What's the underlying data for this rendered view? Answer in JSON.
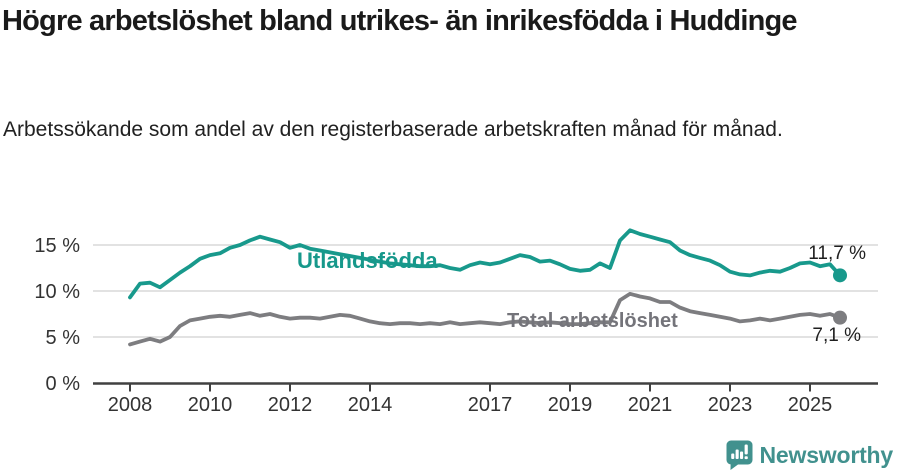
{
  "chart_data": {
    "type": "line",
    "title": "Högre arbetslöshet bland utrikes- än inrikesfödda i Huddinge",
    "subtitle": "Arbetssökande som andel av den registerbaserade arbetskraften månad för månad.",
    "xlabel": "",
    "ylabel": "",
    "unit": "%",
    "xlim": [
      2007.1,
      2026.7
    ],
    "ylim": [
      0,
      17.5
    ],
    "grid": "horizontal",
    "legend": "inline-labels",
    "yticks": [
      {
        "value": 0,
        "label": "0 %"
      },
      {
        "value": 5,
        "label": "5 %"
      },
      {
        "value": 10,
        "label": "10 %"
      },
      {
        "value": 15,
        "label": "15 %"
      }
    ],
    "xticks": [
      {
        "value": 2008,
        "label": "2008"
      },
      {
        "value": 2010,
        "label": "2010"
      },
      {
        "value": 2012,
        "label": "2012"
      },
      {
        "value": 2014,
        "label": "2014"
      },
      {
        "value": 2017,
        "label": "2017"
      },
      {
        "value": 2019,
        "label": "2019"
      },
      {
        "value": 2021,
        "label": "2021"
      },
      {
        "value": 2023,
        "label": "2023"
      },
      {
        "value": 2025,
        "label": "2025"
      }
    ],
    "x": [
      2008.0,
      2008.25,
      2008.5,
      2008.75,
      2009.0,
      2009.25,
      2009.5,
      2009.75,
      2010.0,
      2010.25,
      2010.5,
      2010.75,
      2011.0,
      2011.25,
      2011.5,
      2011.75,
      2012.0,
      2012.25,
      2012.5,
      2012.75,
      2013.0,
      2013.25,
      2013.5,
      2013.75,
      2014.0,
      2014.25,
      2014.5,
      2014.75,
      2015.0,
      2015.25,
      2015.5,
      2015.75,
      2016.0,
      2016.25,
      2016.5,
      2016.75,
      2017.0,
      2017.25,
      2017.5,
      2017.75,
      2018.0,
      2018.25,
      2018.5,
      2018.75,
      2019.0,
      2019.25,
      2019.5,
      2019.75,
      2020.0,
      2020.25,
      2020.5,
      2020.75,
      2021.0,
      2021.25,
      2021.5,
      2021.75,
      2022.0,
      2022.25,
      2022.5,
      2022.75,
      2023.0,
      2023.25,
      2023.5,
      2023.75,
      2024.0,
      2024.25,
      2024.5,
      2024.75,
      2025.0,
      2025.25,
      2025.5,
      2025.75
    ],
    "series": [
      {
        "name": "Utlandsfödda",
        "color": "#18998c",
        "end_label": "11,7 %",
        "end_value": 11.7,
        "values": [
          9.3,
          10.8,
          10.9,
          10.4,
          11.2,
          12.0,
          12.7,
          13.5,
          13.9,
          14.1,
          14.7,
          15.0,
          15.5,
          15.9,
          15.6,
          15.3,
          14.7,
          15.0,
          14.6,
          14.4,
          14.2,
          14.0,
          13.8,
          13.6,
          13.4,
          13.2,
          13.0,
          12.9,
          12.8,
          12.7,
          12.7,
          12.8,
          12.5,
          12.3,
          12.8,
          13.1,
          12.9,
          13.1,
          13.5,
          13.9,
          13.7,
          13.2,
          13.3,
          12.9,
          12.4,
          12.2,
          12.3,
          13.0,
          12.5,
          15.5,
          16.6,
          16.2,
          15.9,
          15.6,
          15.3,
          14.4,
          13.9,
          13.6,
          13.3,
          12.8,
          12.1,
          11.8,
          11.7,
          12.0,
          12.2,
          12.1,
          12.5,
          13.0,
          13.1,
          12.7,
          12.9,
          11.7
        ]
      },
      {
        "name": "Total arbetslöshet",
        "color": "#7d7d80",
        "end_label": "7,1 %",
        "end_value": 7.1,
        "values": [
          4.2,
          4.5,
          4.8,
          4.5,
          5.0,
          6.2,
          6.8,
          7.0,
          7.2,
          7.3,
          7.2,
          7.4,
          7.6,
          7.3,
          7.5,
          7.2,
          7.0,
          7.1,
          7.1,
          7.0,
          7.2,
          7.4,
          7.3,
          7.0,
          6.7,
          6.5,
          6.4,
          6.5,
          6.5,
          6.4,
          6.5,
          6.4,
          6.6,
          6.4,
          6.5,
          6.6,
          6.5,
          6.4,
          6.6,
          6.7,
          6.6,
          6.5,
          6.6,
          6.5,
          6.4,
          6.4,
          6.5,
          6.6,
          6.6,
          9.0,
          9.7,
          9.4,
          9.2,
          8.8,
          8.8,
          8.2,
          7.8,
          7.6,
          7.4,
          7.2,
          7.0,
          6.7,
          6.8,
          7.0,
          6.8,
          7.0,
          7.2,
          7.4,
          7.5,
          7.3,
          7.5,
          7.1
        ]
      }
    ],
    "colors": {
      "axis_line": "#404040",
      "axis_text": "#333333",
      "gridline": "#d9d9d9",
      "end_label_text": "#1f1f1f"
    }
  },
  "footer": {
    "brand": "Newsworthy",
    "brand_color": "#41918e",
    "logo_icon": "speech-bubble-bar-chart-icon"
  }
}
